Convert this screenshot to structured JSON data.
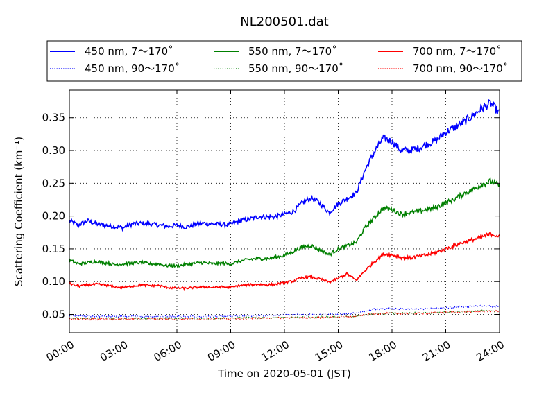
{
  "chart_data": {
    "type": "line",
    "title": "NL200501.dat",
    "xlabel": "Time on 2020-05-01 (JST)",
    "ylabel": "Scattering Coefficient (km⁻¹)",
    "xlim": [
      0,
      24
    ],
    "ylim": [
      0.022,
      0.392
    ],
    "x_ticks": [
      0,
      3,
      6,
      9,
      12,
      15,
      18,
      21,
      24
    ],
    "x_tick_labels": [
      "00:00",
      "03:00",
      "06:00",
      "09:00",
      "12:00",
      "15:00",
      "18:00",
      "21:00",
      "24:00"
    ],
    "y_ticks": [
      0.05,
      0.1,
      0.15,
      0.2,
      0.25,
      0.3,
      0.35
    ],
    "y_tick_labels": [
      "0.05",
      "0.10",
      "0.15",
      "0.20",
      "0.25",
      "0.30",
      "0.35"
    ],
    "grid": true,
    "legend_position": "top",
    "series": [
      {
        "name": "450 nm, 7～170˚",
        "color": "#0000ff",
        "style": "solid",
        "x": [
          0,
          0.5,
          1,
          1.5,
          2,
          2.5,
          3,
          3.5,
          4,
          4.5,
          5,
          5.5,
          6,
          6.5,
          7,
          7.5,
          8,
          8.5,
          9,
          9.5,
          10,
          10.5,
          11,
          11.5,
          12,
          12.5,
          13,
          13.5,
          14,
          14.5,
          15,
          15.5,
          16,
          16.5,
          17,
          17.5,
          18,
          18.5,
          19,
          19.5,
          20,
          20.5,
          21,
          21.5,
          22,
          22.5,
          23,
          23.5,
          24
        ],
        "y": [
          0.193,
          0.186,
          0.193,
          0.188,
          0.186,
          0.184,
          0.182,
          0.188,
          0.189,
          0.188,
          0.186,
          0.184,
          0.186,
          0.183,
          0.187,
          0.189,
          0.188,
          0.187,
          0.187,
          0.193,
          0.195,
          0.199,
          0.199,
          0.199,
          0.203,
          0.207,
          0.22,
          0.228,
          0.219,
          0.205,
          0.219,
          0.227,
          0.235,
          0.27,
          0.297,
          0.319,
          0.314,
          0.3,
          0.3,
          0.304,
          0.31,
          0.316,
          0.328,
          0.335,
          0.343,
          0.353,
          0.364,
          0.372,
          0.357
        ]
      },
      {
        "name": "450 nm, 90～170˚",
        "color": "#0000ff",
        "style": "dotted",
        "x": [
          0,
          2,
          4,
          6,
          8,
          10,
          12,
          14,
          15,
          16,
          17,
          18,
          19,
          20,
          21,
          22,
          23,
          24
        ],
        "y": [
          0.048,
          0.047,
          0.047,
          0.047,
          0.047,
          0.048,
          0.049,
          0.05,
          0.05,
          0.052,
          0.058,
          0.059,
          0.058,
          0.059,
          0.06,
          0.062,
          0.063,
          0.062
        ]
      },
      {
        "name": "550 nm, 7～170˚",
        "color": "#008000",
        "style": "solid",
        "x": [
          0,
          0.5,
          1,
          1.5,
          2,
          2.5,
          3,
          3.5,
          4,
          4.5,
          5,
          5.5,
          6,
          6.5,
          7,
          7.5,
          8,
          8.5,
          9,
          9.5,
          10,
          10.5,
          11,
          11.5,
          12,
          12.5,
          13,
          13.5,
          14,
          14.5,
          15,
          15.5,
          16,
          16.5,
          17,
          17.5,
          18,
          18.5,
          19,
          19.5,
          20,
          20.5,
          21,
          21.5,
          22,
          22.5,
          23,
          23.5,
          24
        ],
        "y": [
          0.133,
          0.127,
          0.129,
          0.131,
          0.129,
          0.126,
          0.127,
          0.128,
          0.129,
          0.127,
          0.127,
          0.124,
          0.124,
          0.126,
          0.128,
          0.129,
          0.127,
          0.128,
          0.127,
          0.131,
          0.134,
          0.135,
          0.135,
          0.137,
          0.14,
          0.146,
          0.153,
          0.155,
          0.148,
          0.141,
          0.15,
          0.155,
          0.16,
          0.182,
          0.197,
          0.212,
          0.21,
          0.203,
          0.205,
          0.207,
          0.21,
          0.214,
          0.22,
          0.226,
          0.234,
          0.24,
          0.248,
          0.253,
          0.246
        ]
      },
      {
        "name": "550 nm, 90～170˚",
        "color": "#008000",
        "style": "dotted",
        "x": [
          0,
          2,
          4,
          6,
          8,
          10,
          12,
          14,
          15,
          16,
          17,
          18,
          19,
          20,
          21,
          22,
          23,
          24
        ],
        "y": [
          0.044,
          0.044,
          0.044,
          0.044,
          0.044,
          0.045,
          0.045,
          0.046,
          0.046,
          0.047,
          0.051,
          0.052,
          0.052,
          0.052,
          0.053,
          0.054,
          0.056,
          0.055
        ]
      },
      {
        "name": "700 nm, 7～170˚",
        "color": "#ff0000",
        "style": "solid",
        "x": [
          0,
          0.5,
          1,
          1.5,
          2,
          2.5,
          3,
          3.5,
          4,
          4.5,
          5,
          5.5,
          6,
          6.5,
          7,
          7.5,
          8,
          8.5,
          9,
          9.5,
          10,
          10.5,
          11,
          11.5,
          12,
          12.5,
          13,
          13.5,
          14,
          14.5,
          15,
          15.5,
          16,
          16.5,
          17,
          17.5,
          18,
          18.5,
          19,
          19.5,
          20,
          20.5,
          21,
          21.5,
          22,
          22.5,
          23,
          23.5,
          24
        ],
        "y": [
          0.097,
          0.093,
          0.095,
          0.096,
          0.095,
          0.092,
          0.091,
          0.093,
          0.095,
          0.094,
          0.094,
          0.091,
          0.09,
          0.09,
          0.091,
          0.092,
          0.091,
          0.092,
          0.091,
          0.094,
          0.095,
          0.096,
          0.095,
          0.096,
          0.098,
          0.101,
          0.106,
          0.107,
          0.104,
          0.099,
          0.105,
          0.112,
          0.102,
          0.117,
          0.13,
          0.142,
          0.141,
          0.137,
          0.136,
          0.139,
          0.141,
          0.145,
          0.15,
          0.155,
          0.16,
          0.164,
          0.168,
          0.173,
          0.169
        ]
      },
      {
        "name": "700 nm, 90～170˚",
        "color": "#ff0000",
        "style": "dotted",
        "x": [
          0,
          2,
          4,
          6,
          8,
          10,
          12,
          14,
          15,
          16,
          17,
          18,
          19,
          20,
          21,
          22,
          23,
          24
        ],
        "y": [
          0.043,
          0.043,
          0.043,
          0.043,
          0.043,
          0.044,
          0.045,
          0.045,
          0.046,
          0.047,
          0.051,
          0.052,
          0.051,
          0.052,
          0.053,
          0.054,
          0.055,
          0.055
        ]
      }
    ]
  }
}
